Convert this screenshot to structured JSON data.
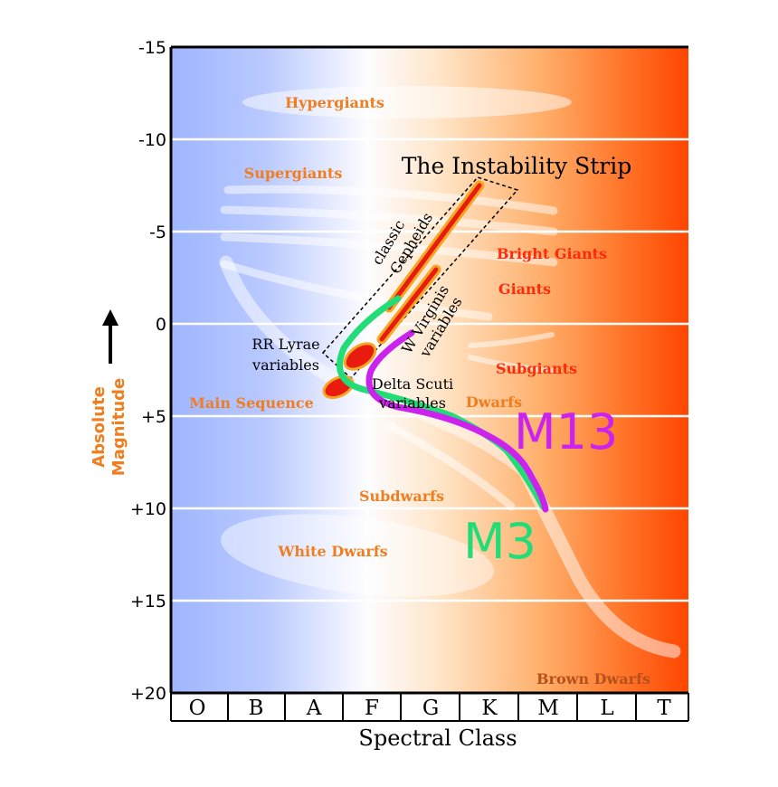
{
  "y_axis": {
    "title_line1": "Absolute",
    "title_line2": "Magnitude",
    "ticks": [
      "-15",
      "-10",
      "-5",
      "0",
      "+5",
      "+10",
      "+15",
      "+20"
    ]
  },
  "x_axis": {
    "title": "Spectral Class",
    "classes": [
      "O",
      "B",
      "A",
      "F",
      "G",
      "K",
      "M",
      "L",
      "T"
    ]
  },
  "regions": {
    "hypergiants": "Hypergiants",
    "supergiants": "Supergiants",
    "bright_giants": "Bright Giants",
    "giants": "Giants",
    "subgiants": "Subgiants",
    "main_sequence": "Main Sequence",
    "dwarfs": "Dwarfs",
    "subdwarfs": "Subdwarfs",
    "white_dwarfs": "White Dwarfs",
    "brown_dwarfs": "Brown Dwarfs"
  },
  "instability_strip": {
    "title": "The Instability Strip",
    "classic_cepheids_line1": "classic",
    "classic_cepheids_line2": "Cepheids",
    "w_virginis_line1": "W Virginis",
    "w_virginis_line2": "variables",
    "rr_lyrae_line1": "RR Lyrae",
    "rr_lyrae_line2": "variables",
    "delta_scuti_line1": "Delta Scuti",
    "delta_scuti_line2": "variables"
  },
  "clusters": {
    "m13": {
      "label": "M13",
      "color": "#cc22ee"
    },
    "m3": {
      "label": "M3",
      "color": "#22dd77"
    }
  },
  "colors": {
    "hot": "#9fb6ff",
    "cool": "#ff4a00",
    "region_orange": "#f07d1e",
    "region_red": "#ff2a0a",
    "brown_dwarfs": "#b5501a"
  }
}
